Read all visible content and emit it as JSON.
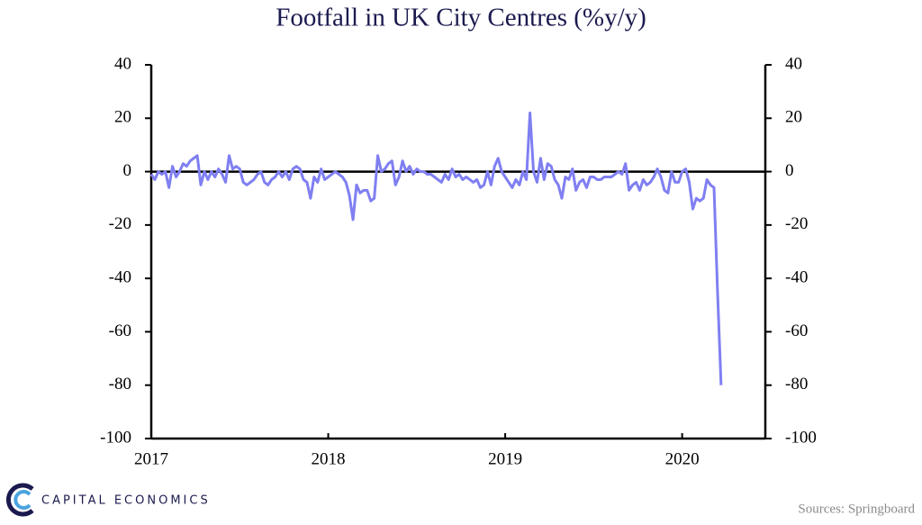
{
  "chart_data": {
    "type": "line",
    "title": "Footfall in UK City Centres (%y/y)",
    "source": "Sources: Springboard",
    "brand": "CAPITAL ECONOMICS",
    "x": [
      2017.0,
      2017.02,
      2017.04,
      2017.06,
      2017.08,
      2017.1,
      2017.12,
      2017.14,
      2017.16,
      2017.18,
      2017.2,
      2017.22,
      2017.24,
      2017.26,
      2017.28,
      2017.3,
      2017.32,
      2017.34,
      2017.36,
      2017.38,
      2017.4,
      2017.42,
      2017.44,
      2017.46,
      2017.48,
      2017.5,
      2017.52,
      2017.54,
      2017.56,
      2017.58,
      2017.6,
      2017.62,
      2017.64,
      2017.66,
      2017.68,
      2017.7,
      2017.72,
      2017.74,
      2017.76,
      2017.78,
      2017.8,
      2017.82,
      2017.84,
      2017.86,
      2017.88,
      2017.9,
      2017.92,
      2017.94,
      2017.96,
      2017.98,
      2018.0,
      2018.02,
      2018.04,
      2018.06,
      2018.08,
      2018.1,
      2018.12,
      2018.14,
      2018.16,
      2018.18,
      2018.2,
      2018.22,
      2018.24,
      2018.26,
      2018.28,
      2018.3,
      2018.32,
      2018.34,
      2018.36,
      2018.38,
      2018.4,
      2018.42,
      2018.44,
      2018.46,
      2018.48,
      2018.5,
      2018.52,
      2018.54,
      2018.56,
      2018.58,
      2018.6,
      2018.62,
      2018.64,
      2018.66,
      2018.68,
      2018.7,
      2018.72,
      2018.74,
      2018.76,
      2018.78,
      2018.8,
      2018.82,
      2018.84,
      2018.86,
      2018.88,
      2018.9,
      2018.92,
      2018.94,
      2018.96,
      2018.98,
      2019.0,
      2019.02,
      2019.04,
      2019.06,
      2019.08,
      2019.1,
      2019.12,
      2019.14,
      2019.16,
      2019.18,
      2019.2,
      2019.22,
      2019.24,
      2019.26,
      2019.28,
      2019.3,
      2019.32,
      2019.34,
      2019.36,
      2019.38,
      2019.4,
      2019.42,
      2019.44,
      2019.46,
      2019.48,
      2019.5,
      2019.52,
      2019.54,
      2019.56,
      2019.58,
      2019.6,
      2019.62,
      2019.64,
      2019.66,
      2019.68,
      2019.7,
      2019.72,
      2019.74,
      2019.76,
      2019.78,
      2019.8,
      2019.82,
      2019.84,
      2019.86,
      2019.88,
      2019.9,
      2019.92,
      2019.94,
      2019.96,
      2019.98,
      2020.0,
      2020.02,
      2020.04,
      2020.06,
      2020.08,
      2020.1,
      2020.12,
      2020.14,
      2020.16,
      2020.18,
      2020.2,
      2020.22
    ],
    "series": [
      {
        "name": "Footfall",
        "color": "#7f7ff2",
        "values": [
          -1,
          -3,
          0,
          -1,
          0,
          -6,
          2,
          -2,
          0,
          3,
          2,
          4,
          5,
          6,
          -5,
          0,
          -3,
          0,
          -2,
          1,
          -1,
          -4,
          6,
          1,
          2,
          1,
          -4,
          -5,
          -4,
          -3,
          -1,
          0,
          -4,
          -5,
          -3,
          -2,
          0,
          -2,
          0,
          -3,
          1,
          2,
          1,
          -3,
          -4,
          -10,
          -2,
          -4,
          1,
          -3,
          -2,
          -1,
          0,
          -1,
          -2,
          -4,
          -9,
          -18,
          -5,
          -8,
          -7,
          -7,
          -11,
          -10,
          6,
          0,
          1,
          3,
          4,
          -5,
          -2,
          4,
          0,
          2,
          -1,
          1,
          0,
          0,
          -1,
          -1,
          -2,
          -3,
          -4,
          -1,
          -3,
          1,
          -2,
          -1,
          -3,
          -2,
          -3,
          -4,
          -3,
          -6,
          -5,
          0,
          -5,
          2,
          5,
          0,
          -2,
          -4,
          -6,
          -3,
          -5,
          0,
          -3,
          22,
          0,
          -4,
          5,
          -3,
          3,
          2,
          -3,
          -5,
          -10,
          -2,
          -3,
          1,
          -7,
          -4,
          -3,
          -6,
          -2,
          -2,
          -3,
          -3,
          -2,
          -2,
          -2,
          -1,
          0,
          -1,
          3,
          -7,
          -5,
          -4,
          -7,
          -3,
          -5,
          -4,
          -2,
          1,
          -2,
          -7,
          -8,
          0,
          -4,
          -4,
          0,
          1,
          -4,
          -14,
          -10,
          -11,
          -10,
          -3,
          -5,
          -6,
          -45,
          -80
        ]
      }
    ],
    "xlim": [
      2017,
      2020.47
    ],
    "xticks": [
      2017,
      2018,
      2019,
      2020
    ],
    "ylim": [
      -100,
      40
    ],
    "yticks": [
      -100,
      -80,
      -60,
      -40,
      -20,
      0,
      20,
      40
    ],
    "y2lim": [
      -100,
      40
    ],
    "y2ticks": [
      -100,
      -80,
      -60,
      -40,
      -20,
      0,
      20,
      40
    ]
  }
}
